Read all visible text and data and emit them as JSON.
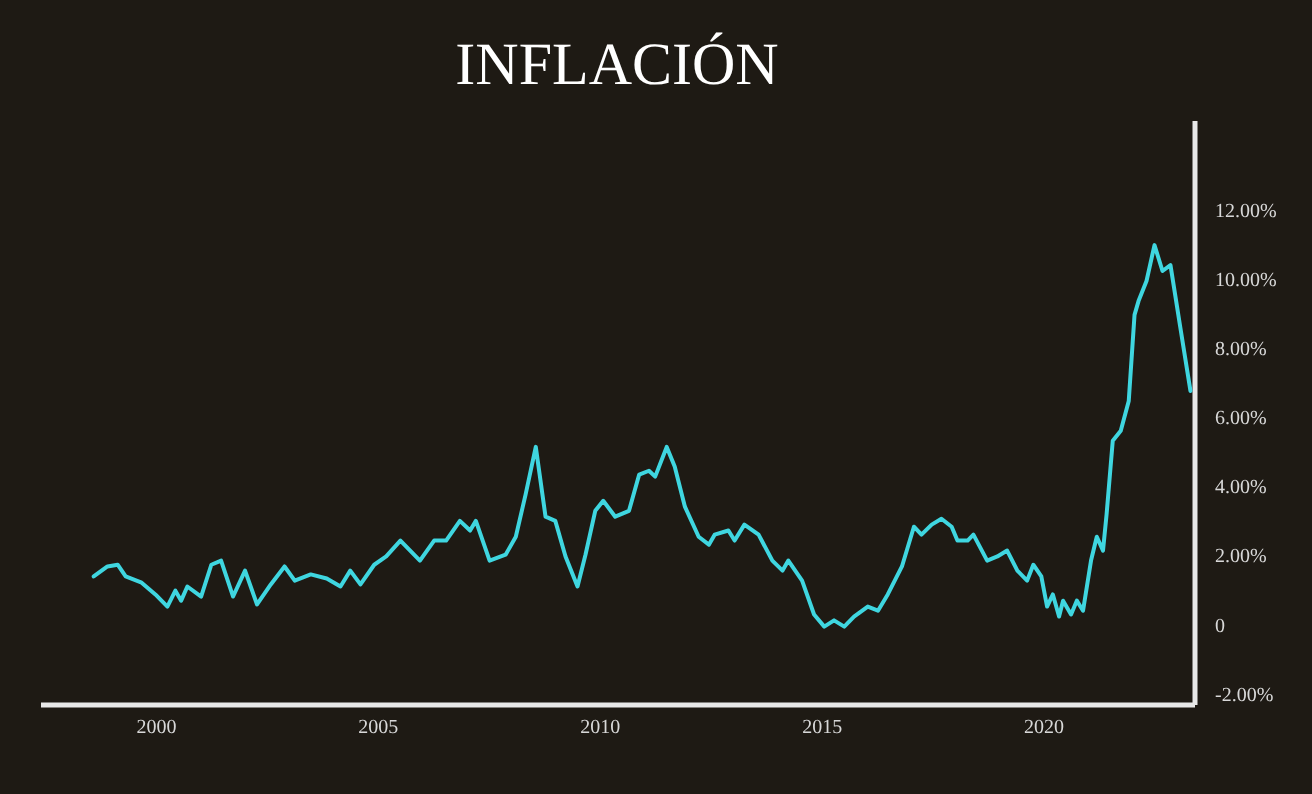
{
  "chart_data": {
    "type": "line",
    "title": "INFLACIÓN",
    "x": [
      1998.61,
      1998.92,
      1999.15,
      1999.33,
      1999.69,
      2000.0,
      2000.27,
      2000.45,
      2000.58,
      2000.72,
      2001.03,
      2001.26,
      2001.48,
      2001.75,
      2002.02,
      2002.29,
      2002.6,
      2002.91,
      2003.14,
      2003.5,
      2003.86,
      2004.17,
      2004.39,
      2004.62,
      2004.93,
      2005.2,
      2005.52,
      2005.96,
      2006.28,
      2006.55,
      2006.86,
      2007.09,
      2007.22,
      2007.53,
      2007.89,
      2008.12,
      2008.34,
      2008.57,
      2008.79,
      2009.01,
      2009.24,
      2009.51,
      2009.69,
      2009.91,
      2010.09,
      2010.36,
      2010.67,
      2010.9,
      2011.12,
      2011.26,
      2011.52,
      2011.7,
      2011.93,
      2012.24,
      2012.47,
      2012.6,
      2012.91,
      2013.05,
      2013.27,
      2013.59,
      2013.9,
      2014.13,
      2014.26,
      2014.57,
      2014.84,
      2015.07,
      2015.29,
      2015.52,
      2015.74,
      2016.05,
      2016.28,
      2016.5,
      2016.82,
      2017.09,
      2017.26,
      2017.49,
      2017.71,
      2017.94,
      2018.07,
      2018.3,
      2018.43,
      2018.74,
      2018.97,
      2019.19,
      2019.42,
      2019.64,
      2019.78,
      2019.96,
      2020.09,
      2020.22,
      2020.36,
      2020.45,
      2020.63,
      2020.76,
      2020.9,
      2021.08,
      2021.21,
      2021.35,
      2021.43,
      2021.57,
      2021.75,
      2021.93,
      2022.06,
      2022.15,
      2022.33,
      2022.51,
      2022.69,
      2022.87,
      2023.09,
      2023.32
    ],
    "series": [
      {
        "color": "#3fd6e0",
        "values": [
          1.39,
          1.68,
          1.73,
          1.39,
          1.21,
          0.87,
          0.52,
          0.98,
          0.69,
          1.1,
          0.81,
          1.73,
          1.85,
          0.81,
          1.56,
          0.58,
          1.16,
          1.68,
          1.27,
          1.45,
          1.33,
          1.1,
          1.56,
          1.16,
          1.73,
          1.97,
          2.43,
          1.85,
          2.43,
          2.43,
          3.0,
          2.72,
          3.0,
          1.85,
          2.02,
          2.54,
          3.76,
          5.14,
          3.12,
          3.0,
          1.97,
          1.1,
          2.02,
          3.29,
          3.58,
          3.12,
          3.29,
          4.34,
          4.45,
          4.28,
          5.14,
          4.57,
          3.41,
          2.54,
          2.31,
          2.6,
          2.72,
          2.43,
          2.89,
          2.6,
          1.85,
          1.56,
          1.85,
          1.27,
          0.29,
          -0.06,
          0.12,
          -0.06,
          0.23,
          0.52,
          0.4,
          0.87,
          1.68,
          2.83,
          2.6,
          2.89,
          3.06,
          2.83,
          2.43,
          2.43,
          2.6,
          1.85,
          1.97,
          2.14,
          1.56,
          1.27,
          1.73,
          1.39,
          0.52,
          0.87,
          0.23,
          0.69,
          0.29,
          0.69,
          0.4,
          1.85,
          2.54,
          2.14,
          3.18,
          5.32,
          5.61,
          6.47,
          8.96,
          9.36,
          9.94,
          10.98,
          10.23,
          10.4,
          8.61,
          6.76
        ]
      }
    ],
    "xlim": [
      1997.4,
      2023.4
    ],
    "xticks": [
      2000,
      2005,
      2010,
      2015,
      2020
    ],
    "ylim": [
      -2.3,
      14.6
    ],
    "yticks": [
      {
        "value": -2,
        "label": "-2.00%"
      },
      0,
      {
        "value": 2,
        "label": "2.00%"
      },
      {
        "value": 4,
        "label": "4.00%"
      },
      {
        "value": 6,
        "label": "6.00%"
      },
      {
        "value": 8,
        "label": "8.00%"
      },
      {
        "value": 10,
        "label": "10.00%"
      },
      {
        "value": 12,
        "label": "12.00%"
      }
    ],
    "grid": false,
    "marker": "none",
    "line_style": "solid"
  }
}
